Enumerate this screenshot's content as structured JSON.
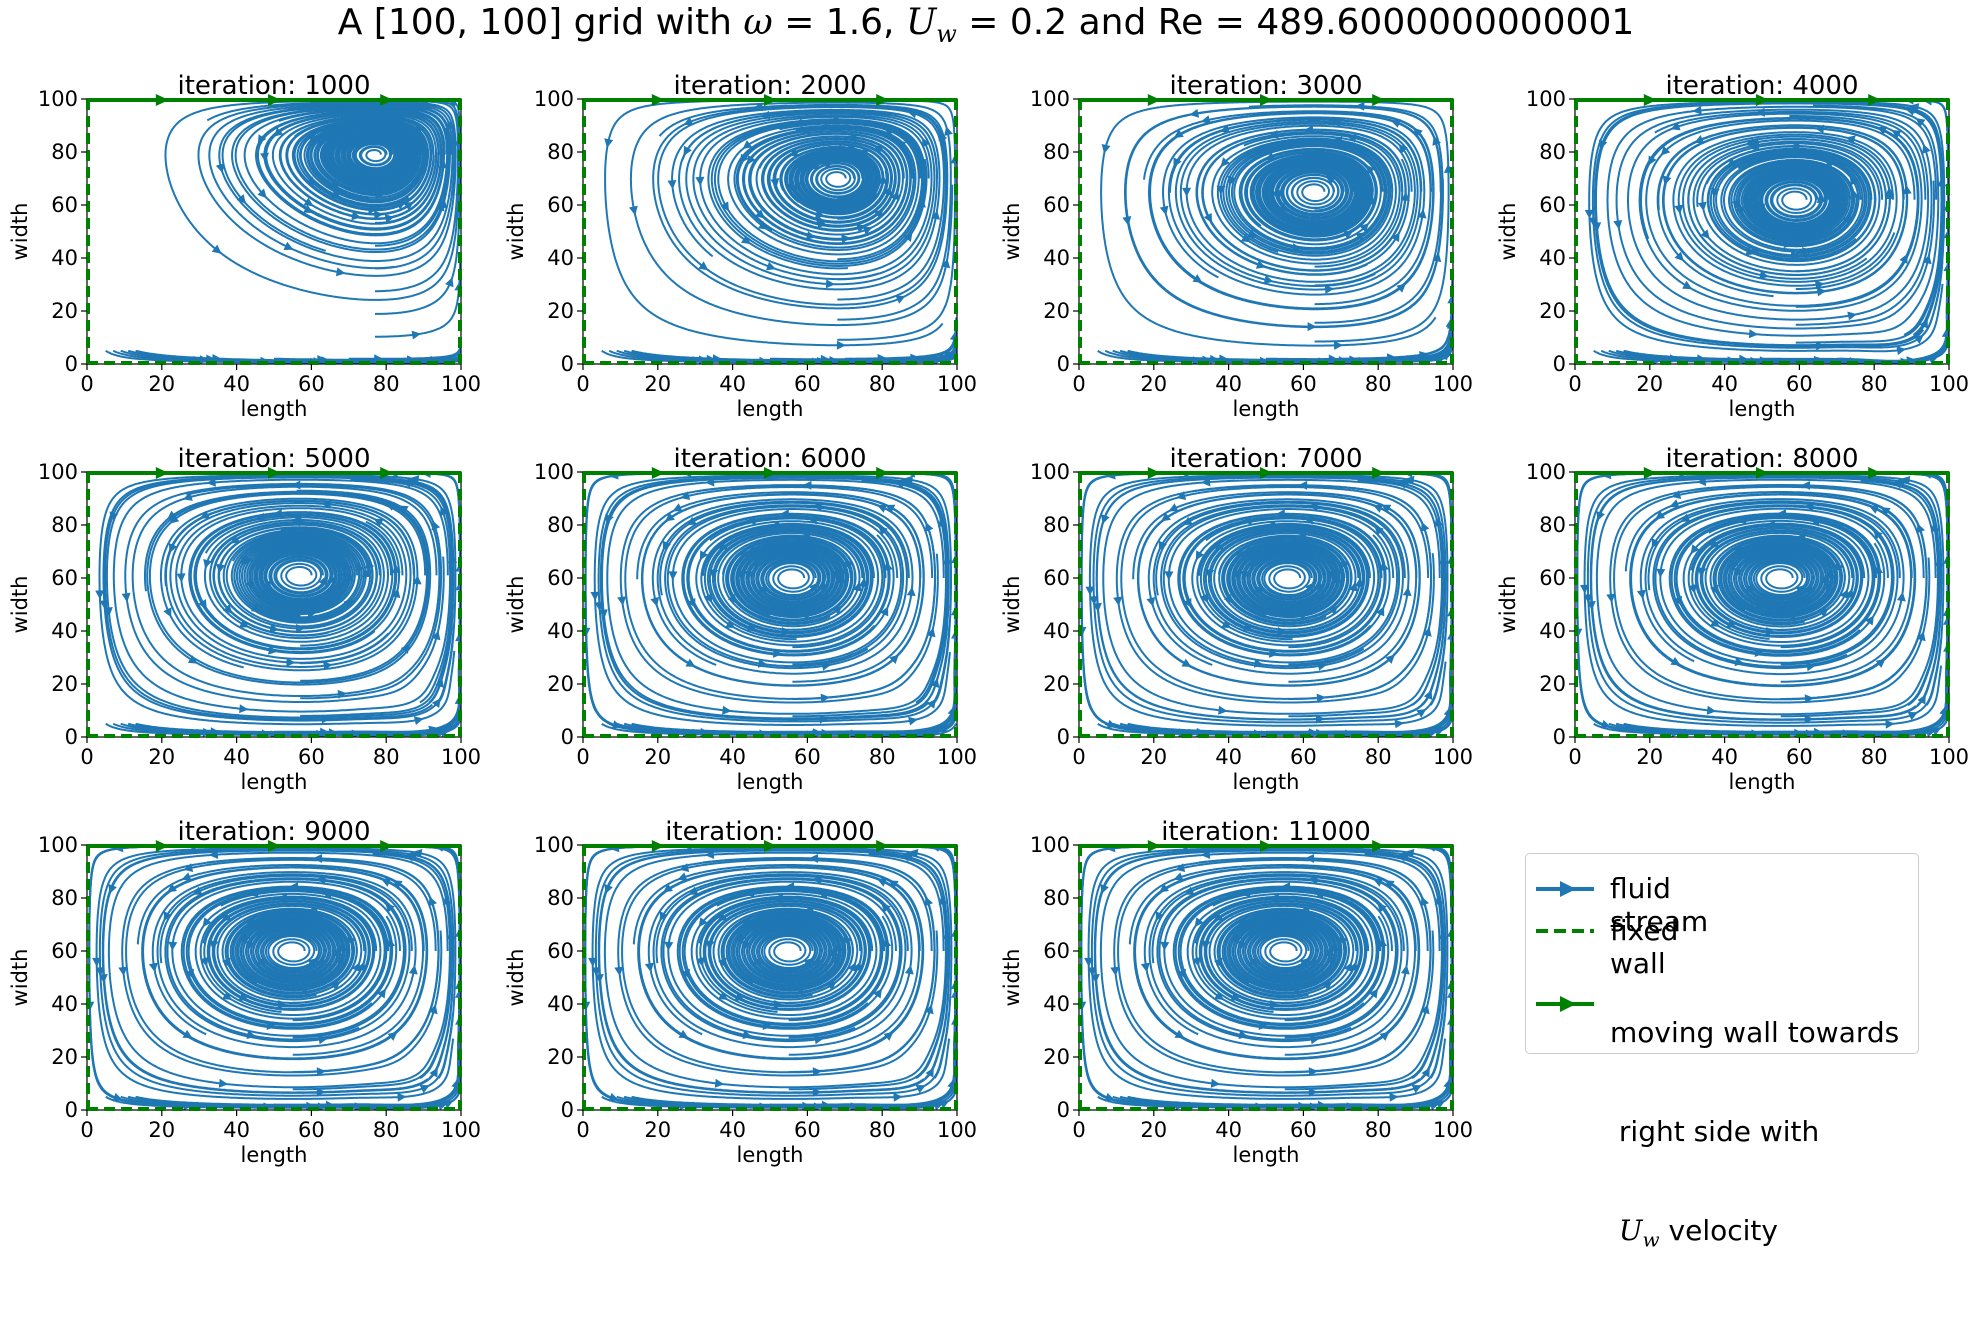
{
  "title": {
    "prefix": "A [100, 100] grid with ",
    "omega_symbol": "ω",
    "omega_text": " = 1.6, ",
    "uw_symbol": "U",
    "uw_sub": "w",
    "uw_text": " = 0.2 and Re = 489.6000000000001"
  },
  "colors": {
    "stream": "#1f77b4",
    "wall": "#008000",
    "legend_border": "#cccccc"
  },
  "legend": {
    "items": [
      {
        "label": "fluid stream",
        "style": "stream-arrow"
      },
      {
        "label": "fixed wall",
        "style": "dashed-green"
      },
      {
        "label_lines": [
          "moving wall towards",
          " right side with"
        ],
        "label_symbol": "U",
        "label_sub": "w",
        "label_tail": " velocity",
        "style": "green-arrow"
      }
    ]
  },
  "chart_data": [
    {
      "type": "streamplot",
      "title": "iteration: 1000",
      "xlabel": "length",
      "ylabel": "width",
      "xlim": [
        0,
        100
      ],
      "ylim": [
        0,
        100
      ],
      "xticks": [
        0,
        20,
        40,
        60,
        80,
        100
      ],
      "yticks": [
        0,
        20,
        40,
        60,
        80,
        100
      ],
      "vortex_center": [
        77,
        79
      ],
      "corner_eddy": false,
      "series": [
        {
          "name": "fluid stream"
        },
        {
          "name": "fixed wall"
        },
        {
          "name": "moving wall"
        }
      ]
    },
    {
      "type": "streamplot",
      "title": "iteration: 2000",
      "xlabel": "length",
      "ylabel": "width",
      "xlim": [
        0,
        100
      ],
      "ylim": [
        0,
        100
      ],
      "xticks": [
        0,
        20,
        40,
        60,
        80,
        100
      ],
      "yticks": [
        0,
        20,
        40,
        60,
        80,
        100
      ],
      "vortex_center": [
        68,
        70
      ],
      "corner_eddy": false
    },
    {
      "type": "streamplot",
      "title": "iteration: 3000",
      "xlabel": "length",
      "ylabel": "width",
      "xlim": [
        0,
        100
      ],
      "ylim": [
        0,
        100
      ],
      "xticks": [
        0,
        20,
        40,
        60,
        80,
        100
      ],
      "yticks": [
        0,
        20,
        40,
        60,
        80,
        100
      ],
      "vortex_center": [
        63,
        65
      ],
      "corner_eddy": false
    },
    {
      "type": "streamplot",
      "title": "iteration: 4000",
      "xlabel": "length",
      "ylabel": "width",
      "xlim": [
        0,
        100
      ],
      "ylim": [
        0,
        100
      ],
      "xticks": [
        0,
        20,
        40,
        60,
        80,
        100
      ],
      "yticks": [
        0,
        20,
        40,
        60,
        80,
        100
      ],
      "vortex_center": [
        59,
        62
      ],
      "corner_eddy": true,
      "eddy_center": [
        86,
        11
      ]
    },
    {
      "type": "streamplot",
      "title": "iteration: 5000",
      "xlabel": "length",
      "ylabel": "width",
      "xlim": [
        0,
        100
      ],
      "ylim": [
        0,
        100
      ],
      "xticks": [
        0,
        20,
        40,
        60,
        80,
        100
      ],
      "yticks": [
        0,
        20,
        40,
        60,
        80,
        100
      ],
      "vortex_center": [
        57,
        61
      ],
      "corner_eddy": true,
      "eddy_center": [
        87,
        13
      ]
    },
    {
      "type": "streamplot",
      "title": "iteration: 6000",
      "xlabel": "length",
      "ylabel": "width",
      "xlim": [
        0,
        100
      ],
      "ylim": [
        0,
        100
      ],
      "xticks": [
        0,
        20,
        40,
        60,
        80,
        100
      ],
      "yticks": [
        0,
        20,
        40,
        60,
        80,
        100
      ],
      "vortex_center": [
        56,
        60
      ],
      "corner_eddy": true,
      "eddy_center": [
        87,
        13
      ]
    },
    {
      "type": "streamplot",
      "title": "iteration: 7000",
      "xlabel": "length",
      "ylabel": "width",
      "xlim": [
        0,
        100
      ],
      "ylim": [
        0,
        100
      ],
      "xticks": [
        0,
        20,
        40,
        60,
        80,
        100
      ],
      "yticks": [
        0,
        20,
        40,
        60,
        80,
        100
      ],
      "vortex_center": [
        56,
        60
      ],
      "corner_eddy": true,
      "eddy_center": [
        87,
        12
      ]
    },
    {
      "type": "streamplot",
      "title": "iteration: 8000",
      "xlabel": "length",
      "ylabel": "width",
      "xlim": [
        0,
        100
      ],
      "ylim": [
        0,
        100
      ],
      "xticks": [
        0,
        20,
        40,
        60,
        80,
        100
      ],
      "yticks": [
        0,
        20,
        40,
        60,
        80,
        100
      ],
      "vortex_center": [
        55,
        60
      ],
      "corner_eddy": true,
      "eddy_center": [
        87,
        12
      ]
    },
    {
      "type": "streamplot",
      "title": "iteration: 9000",
      "xlabel": "length",
      "ylabel": "width",
      "xlim": [
        0,
        100
      ],
      "ylim": [
        0,
        100
      ],
      "xticks": [
        0,
        20,
        40,
        60,
        80,
        100
      ],
      "yticks": [
        0,
        20,
        40,
        60,
        80,
        100
      ],
      "vortex_center": [
        55,
        60
      ],
      "corner_eddy": true,
      "eddy_center": [
        87,
        12
      ]
    },
    {
      "type": "streamplot",
      "title": "iteration: 10000",
      "xlabel": "length",
      "ylabel": "width",
      "xlim": [
        0,
        100
      ],
      "ylim": [
        0,
        100
      ],
      "xticks": [
        0,
        20,
        40,
        60,
        80,
        100
      ],
      "yticks": [
        0,
        20,
        40,
        60,
        80,
        100
      ],
      "vortex_center": [
        55,
        60
      ],
      "corner_eddy": true,
      "eddy_center": [
        87,
        12
      ]
    },
    {
      "type": "streamplot",
      "title": "iteration: 11000",
      "xlabel": "length",
      "ylabel": "width",
      "xlim": [
        0,
        100
      ],
      "ylim": [
        0,
        100
      ],
      "xticks": [
        0,
        20,
        40,
        60,
        80,
        100
      ],
      "yticks": [
        0,
        20,
        40,
        60,
        80,
        100
      ],
      "vortex_center": [
        55,
        60
      ],
      "corner_eddy": true,
      "eddy_center": [
        87,
        12
      ]
    }
  ]
}
